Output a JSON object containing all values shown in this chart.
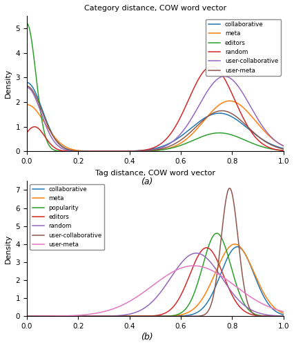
{
  "title_a": "Category distance, COW word vector",
  "title_b": "Tag distance, COW word vector",
  "label_a": "(a)",
  "label_b": "(b)",
  "ylabel": "Density",
  "colors_a": {
    "collaborative": "#1f77b4",
    "meta": "#ff7f0e",
    "editors": "#2ca02c",
    "random": "#d62728",
    "user-collaborative": "#9467bd",
    "user-meta": "#8c564b"
  },
  "colors_b": {
    "collaborative": "#1f77b4",
    "meta": "#ff7f0e",
    "popularity": "#2ca02c",
    "editors": "#d62728",
    "random": "#9467bd",
    "user-collaborative": "#8c564b",
    "user-meta": "#e377c2"
  },
  "legend_a": [
    "collaborative",
    "meta",
    "editors",
    "random",
    "user-collaborative",
    "user-meta"
  ],
  "legend_b": [
    "collaborative",
    "meta",
    "popularity",
    "editors",
    "random",
    "user-collaborative",
    "user-meta"
  ]
}
